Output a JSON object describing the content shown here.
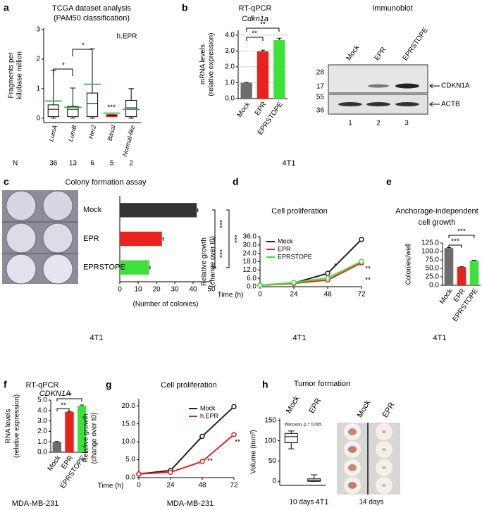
{
  "panel_letters": [
    "a",
    "b",
    "c",
    "d",
    "e",
    "f",
    "g",
    "h"
  ],
  "immunoblot": {
    "title": "Immunoblot",
    "lanes": [
      "Mock",
      "EPR",
      "EPRSTOPE"
    ],
    "markers": [
      28,
      17,
      55,
      36
    ],
    "bands": [
      "CDKN1A",
      "ACTB"
    ],
    "lane_numbers": [
      1,
      2,
      3
    ]
  },
  "chart_data": [
    {
      "type": "box",
      "title": "TCGA dataset analysis",
      "subtitle": "(PAM50 classification)",
      "ylabel": [
        "Fragments per",
        "kilobase million"
      ],
      "label": "h.EPR",
      "categories": [
        "LumA",
        "LumB",
        "Her2",
        "Basal",
        "Normal-like"
      ],
      "boxes": [
        {
          "min": 0,
          "q1": 0.05,
          "median": 0.3,
          "q3": 0.45,
          "max": 1.62,
          "mean": 0.58
        },
        {
          "min": 0,
          "q1": 0.05,
          "median": 0.3,
          "q3": 0.4,
          "max": 1.02,
          "mean": 0.37
        },
        {
          "min": 0,
          "q1": 0.05,
          "median": 0.5,
          "q3": 0.85,
          "max": 2.35,
          "mean": 1.15
        },
        {
          "min": 0.05,
          "q1": 0.05,
          "median": 0.1,
          "q3": 0.12,
          "max": 0.12,
          "mean": 0.17
        },
        {
          "min": 0,
          "q1": 0.05,
          "median": 0.35,
          "q3": 0.6,
          "max": 1.0,
          "mean": 0.3
        }
      ],
      "box_colors": [
        "#ffffff",
        "#ffffff",
        "#ffffff",
        "#e8231e",
        "#ffffff"
      ],
      "mean_color": "#2fa84f",
      "ylim": [
        -0.15,
        3.05
      ],
      "yticks": [
        0,
        1,
        2,
        3
      ],
      "annotations": [
        "*",
        "*",
        "***"
      ],
      "n_label": "N",
      "n": [
        36,
        13,
        6,
        5,
        2
      ]
    },
    {
      "type": "bar",
      "title": "RT-qPCR",
      "subtitle": "Cdkn1a",
      "ylabel": [
        "mRNA levels",
        "(relative expression)"
      ],
      "categories": [
        "Mock",
        "EPR",
        "EPRSTOPE"
      ],
      "values": [
        1.0,
        2.97,
        3.68
      ],
      "errors": [
        0.03,
        0.08,
        0.12
      ],
      "colors": [
        "#6d6d6d",
        "#e8231e",
        "#3fe03a"
      ],
      "ylim": [
        0,
        4.3
      ],
      "yticks": [
        {
          "value": 0,
          "label": "0.0"
        },
        {
          "value": 1,
          "label": "1.0"
        },
        {
          "value": 2,
          "label": "2.0"
        },
        {
          "value": 3,
          "label": "3.0"
        },
        {
          "value": 4,
          "label": "4.0"
        }
      ],
      "grid": true,
      "annotations": [
        "**",
        "**"
      ],
      "cell_line": "4T1",
      "cell_line_color": "#e8231e"
    },
    {
      "type": "barh",
      "title": "Colony formation assay",
      "categories": [
        "Mock",
        "EPR",
        "EPRSTOPE"
      ],
      "values": [
        42,
        23,
        16
      ],
      "errors": [
        0.6,
        0.8,
        0.5
      ],
      "colors": [
        "#333333",
        "#e8231e",
        "#3fe03a"
      ],
      "xlim": [
        0,
        50
      ],
      "xticks": [
        0,
        10,
        20,
        30,
        40,
        50
      ],
      "xlabel": "(Number of colonies)",
      "annotations": [
        "***",
        "***",
        "***"
      ],
      "cell_line": "4T1",
      "cell_line_color": "#e8231e"
    },
    {
      "type": "line",
      "title": "Cell proliferation",
      "ylabel": [
        "Relative growth",
        "(change over t0)"
      ],
      "xlabel": "Time (h)",
      "x": [
        0,
        24,
        48,
        72
      ],
      "xlim": [
        0,
        72
      ],
      "xticks": [
        0,
        24,
        48,
        72
      ],
      "ylim": [
        0,
        36
      ],
      "yticks": [
        {
          "value": 0,
          "label": "0.0"
        },
        {
          "value": 6,
          "label": "6.0"
        },
        {
          "value": 12,
          "label": "12.0"
        },
        {
          "value": 18,
          "label": "18.0"
        },
        {
          "value": 24,
          "label": "24.0"
        },
        {
          "value": 30,
          "label": "30.0"
        },
        {
          "value": 36,
          "label": "36.0"
        }
      ],
      "series": [
        {
          "name": "Mock",
          "color": "#222222",
          "values": [
            1,
            2.6,
            9.6,
            34
          ]
        },
        {
          "name": "EPR",
          "color": "#e8231e",
          "values": [
            1,
            2.4,
            4.8,
            17.2
          ]
        },
        {
          "name": "EPRSTOPE",
          "color": "#3fe03a",
          "values": [
            1,
            3,
            6.2,
            18.2
          ]
        }
      ],
      "legend": "upper left",
      "annotations": [
        "*",
        "**",
        "**"
      ],
      "cell_line": "4T1",
      "cell_line_color": "#e8231e"
    },
    {
      "type": "bar",
      "title": "Anchorage-independent",
      "subtitle": "cell growth",
      "ylabel": [
        "Colonies/well"
      ],
      "categories": [
        "Mock",
        "EPR",
        "EPRSTOPE"
      ],
      "values": [
        110,
        54,
        73
      ],
      "errors": [
        1.5,
        1,
        1
      ],
      "colors": [
        "#6d6d6d",
        "#e8231e",
        "#3fe03a"
      ],
      "ylim": [
        0,
        125
      ],
      "yticks": [
        {
          "value": 0,
          "label": "0.0"
        },
        {
          "value": 25,
          "label": "25.0"
        },
        {
          "value": 50,
          "label": "50.0"
        },
        {
          "value": 75,
          "label": "75.0"
        },
        {
          "value": 100,
          "label": "100.0"
        },
        {
          "value": 125,
          "label": "125.0"
        }
      ],
      "annotations": [
        "***",
        "***"
      ],
      "cell_line": "4T1",
      "cell_line_color": "#e8231e"
    },
    {
      "type": "bar",
      "title": "RT-qPCR",
      "subtitle": "CDKN1A",
      "ylabel": [
        "RNA levels",
        "(relative expression)"
      ],
      "categories": [
        "Mock",
        "EPR",
        "EPRSTOPE"
      ],
      "values": [
        1.0,
        3.88,
        4.45
      ],
      "errors": [
        0.03,
        0.05,
        0.08
      ],
      "colors": [
        "#6d6d6d",
        "#e8231e",
        "#3fe03a"
      ],
      "ylim": [
        0,
        5
      ],
      "yticks": [
        {
          "value": 0,
          "label": "0.0"
        },
        {
          "value": 1,
          "label": "1.0"
        },
        {
          "value": 2,
          "label": "2.0"
        },
        {
          "value": 3,
          "label": "3.0"
        },
        {
          "value": 4,
          "label": "4.0"
        },
        {
          "value": 5,
          "label": "5.0"
        }
      ],
      "annotations": [
        "**",
        "**"
      ],
      "cell_line": "MDA-MB-231",
      "cell_line_color": "#1f4e9e"
    },
    {
      "type": "line",
      "title": "Cell proliferation",
      "ylabel": [
        "Relative growth",
        "(change over t0)"
      ],
      "xlabel": "Time (h)",
      "x": [
        0,
        24,
        48,
        72
      ],
      "xlim": [
        0,
        72
      ],
      "xticks": [
        0,
        24,
        48,
        72
      ],
      "ylim": [
        0,
        22
      ],
      "yticks": [
        {
          "value": 0,
          "label": "0.0"
        },
        {
          "value": 5,
          "label": "5.0"
        },
        {
          "value": 10,
          "label": "10.0"
        },
        {
          "value": 15,
          "label": "15.0"
        },
        {
          "value": 20,
          "label": "20.0"
        }
      ],
      "series": [
        {
          "name": "Mock",
          "color": "#222222",
          "values": [
            1,
            2,
            11.5,
            19.8
          ]
        },
        {
          "name": "h.EPR",
          "color": "#e8231e",
          "values": [
            1,
            1.5,
            4.5,
            12
          ]
        }
      ],
      "legend": "upper left",
      "annotations": [
        "**",
        "**"
      ],
      "cell_line": "MDA-MB-231",
      "cell_line_color": "#1f4e9e"
    },
    {
      "type": "box",
      "title": "Tumor formation",
      "ylabel": [
        "Volume (mm³)"
      ],
      "categories": [
        "Mock",
        "EPR"
      ],
      "boxes": [
        {
          "min": 80,
          "q1": 95,
          "median": 110,
          "q3": 118,
          "max": 124
        },
        {
          "min": 0,
          "q1": 0,
          "median": 2,
          "q3": 6,
          "max": 16
        }
      ],
      "box_colors": [
        "#ffffff",
        "#ffffff"
      ],
      "ylim": [
        -10,
        155
      ],
      "yticks": [
        0,
        50,
        100,
        150
      ],
      "annotations": [
        "Wilcoxon, p = 0.005"
      ],
      "period": "10 days",
      "photo_labels": [
        "Mock",
        "EPR"
      ],
      "photo_period": "14 days",
      "cell_line": "4T1",
      "cell_line_color": "#e8231e"
    }
  ]
}
